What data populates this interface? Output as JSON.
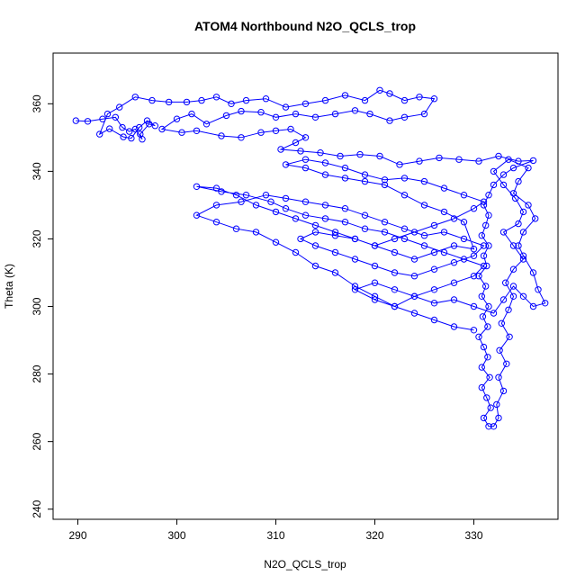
{
  "chart_data": {
    "type": "scatter",
    "title": "ATOM4 Northbound N2O_QCLS_trop",
    "xlabel": "N2O_QCLS_trop",
    "ylabel": "Theta (K)",
    "xlim": [
      287.5,
      338.5
    ],
    "ylim": [
      237,
      375
    ],
    "x_ticks": [
      290,
      300,
      310,
      320,
      330
    ],
    "y_ticks": [
      240,
      260,
      280,
      300,
      320,
      340,
      360
    ],
    "grid": false,
    "legend": "none",
    "color": "#0000ff",
    "marker": "open-circle",
    "connected": true,
    "series": [
      {
        "name": "",
        "points": [
          [
            289.8,
            355
          ],
          [
            291,
            354.8
          ],
          [
            292.5,
            355.5
          ],
          [
            293.8,
            356
          ],
          [
            294.5,
            353
          ],
          [
            295.2,
            351.8
          ],
          [
            295.8,
            352.5
          ],
          [
            296.5,
            349.5
          ],
          [
            296.3,
            351
          ],
          [
            297.2,
            354
          ],
          [
            297.8,
            353.5
          ],
          [
            297,
            355
          ],
          [
            296.2,
            353
          ],
          [
            295.4,
            349.8
          ],
          [
            294.6,
            350.2
          ],
          [
            293.2,
            352.6
          ],
          [
            292.2,
            351
          ],
          [
            293,
            357
          ],
          [
            294.2,
            359
          ],
          [
            295.8,
            362
          ],
          [
            297.5,
            361
          ],
          [
            299.2,
            360.5
          ],
          [
            301,
            360.5
          ],
          [
            302.5,
            361
          ],
          [
            304,
            362
          ],
          [
            305.5,
            360
          ],
          [
            307,
            361
          ],
          [
            309,
            361.5
          ],
          [
            311,
            359
          ],
          [
            313,
            360
          ],
          [
            315,
            361
          ],
          [
            317,
            362.5
          ],
          [
            319,
            361
          ],
          [
            320.5,
            364
          ],
          [
            321.5,
            363
          ],
          [
            323,
            361
          ],
          [
            324.5,
            362
          ],
          [
            326,
            361.5
          ],
          [
            325,
            357
          ],
          [
            323,
            356
          ],
          [
            321.5,
            355
          ],
          [
            319.5,
            357
          ],
          [
            318,
            358
          ],
          [
            316,
            357
          ],
          [
            314,
            356
          ],
          [
            312,
            357
          ],
          [
            310,
            356
          ],
          [
            308.5,
            357.5
          ],
          [
            306.5,
            357.8
          ],
          [
            305,
            356.5
          ],
          [
            303,
            354
          ],
          [
            301.5,
            357
          ],
          [
            300,
            355.5
          ],
          [
            298.5,
            352.5
          ],
          [
            300.5,
            351.5
          ],
          [
            302,
            352
          ],
          [
            304.5,
            350.5
          ],
          [
            306.5,
            350
          ],
          [
            308.5,
            351.5
          ],
          [
            310,
            352
          ],
          [
            311.5,
            352.5
          ],
          [
            313,
            350
          ],
          [
            312,
            348.5
          ],
          [
            310.5,
            346.5
          ],
          [
            312.5,
            346
          ],
          [
            314.5,
            345.5
          ],
          [
            316.5,
            344.5
          ],
          [
            318.5,
            345
          ],
          [
            320.5,
            344.5
          ],
          [
            322.5,
            342
          ],
          [
            324.5,
            343
          ],
          [
            326.5,
            344
          ],
          [
            328.5,
            343.5
          ],
          [
            330.5,
            343
          ],
          [
            332.5,
            344.5
          ],
          [
            334.5,
            343
          ],
          [
            336,
            343.2
          ],
          [
            334,
            341
          ],
          [
            333,
            339
          ],
          [
            332,
            336
          ],
          [
            331.5,
            333
          ],
          [
            331,
            330
          ],
          [
            331.5,
            327
          ],
          [
            331.2,
            324
          ],
          [
            330.8,
            321
          ],
          [
            331.5,
            318
          ],
          [
            331,
            315
          ],
          [
            331.3,
            312
          ],
          [
            330.5,
            309
          ],
          [
            331.2,
            306
          ],
          [
            330.8,
            303
          ],
          [
            331.5,
            300
          ],
          [
            330.9,
            297
          ],
          [
            331.4,
            294
          ],
          [
            330.5,
            291
          ],
          [
            331,
            288
          ],
          [
            331.4,
            285
          ],
          [
            330.8,
            282
          ],
          [
            331.6,
            279
          ],
          [
            330.8,
            276
          ],
          [
            331.3,
            273
          ],
          [
            331.7,
            270
          ],
          [
            331,
            267
          ],
          [
            331.5,
            264.5
          ],
          [
            332,
            264.5
          ],
          [
            332.5,
            267
          ],
          [
            332.3,
            271
          ],
          [
            333,
            275
          ],
          [
            332.5,
            279
          ],
          [
            333.3,
            283
          ],
          [
            332.6,
            287
          ],
          [
            333.6,
            291
          ],
          [
            332.8,
            295
          ],
          [
            333.5,
            299
          ],
          [
            334,
            303
          ],
          [
            333.2,
            307
          ],
          [
            334,
            311
          ],
          [
            335,
            314
          ],
          [
            334,
            318
          ],
          [
            333,
            322
          ],
          [
            334.5,
            324.5
          ],
          [
            335,
            328
          ],
          [
            334.2,
            332
          ],
          [
            333,
            336
          ],
          [
            332,
            340
          ],
          [
            333.5,
            343.5
          ],
          [
            335.5,
            341
          ],
          [
            334.5,
            337
          ],
          [
            334,
            333.5
          ],
          [
            335.5,
            330
          ],
          [
            336.2,
            326
          ],
          [
            335,
            322
          ],
          [
            334.5,
            318
          ],
          [
            335,
            315
          ],
          [
            336,
            310
          ],
          [
            336.5,
            305
          ],
          [
            337.2,
            301
          ],
          [
            336,
            300
          ],
          [
            335,
            303
          ],
          [
            334,
            306
          ],
          [
            333,
            302
          ],
          [
            332,
            298
          ],
          [
            330,
            300
          ],
          [
            328,
            302
          ],
          [
            326,
            301
          ],
          [
            324,
            303
          ],
          [
            322,
            300
          ],
          [
            320,
            303
          ],
          [
            318,
            306
          ],
          [
            316,
            310
          ],
          [
            314,
            312
          ],
          [
            312,
            316
          ],
          [
            310,
            319
          ],
          [
            308,
            322
          ],
          [
            306,
            323
          ],
          [
            304,
            325
          ],
          [
            302,
            327
          ],
          [
            304,
            330
          ],
          [
            306.5,
            331
          ],
          [
            309,
            333
          ],
          [
            311,
            332
          ],
          [
            313,
            331
          ],
          [
            315,
            330
          ],
          [
            317,
            329
          ],
          [
            319,
            327
          ],
          [
            321,
            325
          ],
          [
            323,
            323
          ],
          [
            325,
            321
          ],
          [
            327,
            322
          ],
          [
            329,
            320
          ],
          [
            331,
            318
          ],
          [
            330,
            315
          ],
          [
            328,
            313
          ],
          [
            326,
            311
          ],
          [
            324,
            309
          ],
          [
            322,
            310
          ],
          [
            320,
            312
          ],
          [
            318,
            314
          ],
          [
            316,
            316
          ],
          [
            314,
            318
          ],
          [
            312.5,
            320
          ],
          [
            314,
            322
          ],
          [
            316,
            321
          ],
          [
            318,
            320
          ],
          [
            320,
            318
          ],
          [
            322,
            316
          ],
          [
            324,
            314
          ],
          [
            326,
            316
          ],
          [
            328,
            318
          ],
          [
            330,
            317
          ],
          [
            329,
            325
          ],
          [
            327,
            328
          ],
          [
            325,
            330
          ],
          [
            323,
            333
          ],
          [
            321,
            336
          ],
          [
            319,
            337
          ],
          [
            317,
            338
          ],
          [
            315,
            339
          ],
          [
            313,
            341
          ],
          [
            311,
            342
          ],
          [
            313,
            343.5
          ],
          [
            315,
            342.5
          ],
          [
            317,
            341
          ],
          [
            319,
            339
          ],
          [
            321,
            337.5
          ],
          [
            323,
            338
          ],
          [
            325,
            337
          ],
          [
            327,
            335
          ],
          [
            329,
            333
          ],
          [
            331,
            331
          ],
          [
            330,
            329
          ],
          [
            328,
            326
          ],
          [
            326,
            324
          ],
          [
            324,
            322
          ],
          [
            322,
            320
          ],
          [
            320,
            318
          ],
          [
            318,
            320
          ],
          [
            316,
            322
          ],
          [
            314,
            324
          ],
          [
            312,
            326
          ],
          [
            310,
            328
          ],
          [
            308,
            330
          ],
          [
            306,
            333
          ],
          [
            304,
            335
          ],
          [
            302,
            335.5
          ],
          [
            304.5,
            334
          ],
          [
            307,
            333
          ],
          [
            309.5,
            331
          ],
          [
            311,
            329
          ],
          [
            313,
            327
          ],
          [
            315,
            326
          ],
          [
            317,
            325
          ],
          [
            319,
            323
          ],
          [
            321,
            322
          ],
          [
            323,
            320
          ],
          [
            325,
            318
          ],
          [
            327,
            316
          ],
          [
            329,
            314
          ],
          [
            331,
            312
          ],
          [
            330,
            309
          ],
          [
            328,
            307
          ],
          [
            326,
            305
          ],
          [
            324,
            303
          ],
          [
            322,
            305
          ],
          [
            320,
            307
          ],
          [
            318,
            305
          ],
          [
            320,
            302
          ],
          [
            322,
            300
          ],
          [
            324,
            298
          ],
          [
            326,
            296
          ],
          [
            328,
            294
          ],
          [
            330,
            293
          ]
        ]
      }
    ]
  }
}
